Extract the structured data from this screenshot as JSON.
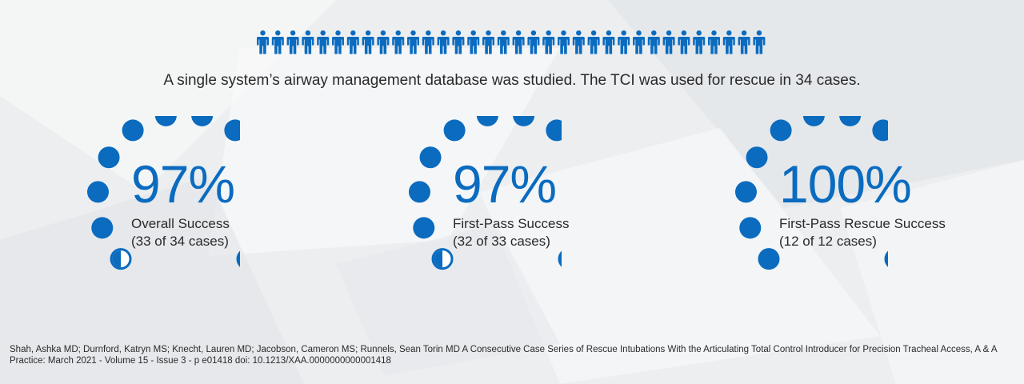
{
  "intro_text": "A single system’s airway management database was studied. The TCI was used for rescue in 34 cases.",
  "people_icons": {
    "count": 34,
    "icon": "person-icon",
    "color": "#0a6bbf"
  },
  "stats": [
    {
      "percent": "97%",
      "label": "Overall Success",
      "detail": "(33 of 34 cases)",
      "dots_filled": 11,
      "half_dot": true
    },
    {
      "percent": "97%",
      "label": "First-Pass Success",
      "detail": "(32 of 33 cases)",
      "dots_filled": 11,
      "half_dot": true
    },
    {
      "percent": "100%",
      "label": "First-Pass Rescue Success",
      "detail": "(12 of 12 cases)",
      "dots_filled": 12,
      "half_dot": false
    }
  ],
  "citation": "Shah, Ashka MD; Durnford, Katryn MS; Knecht, Lauren MD; Jacobson, Cameron MS; Runnels, Sean Torin MD A Consecutive Case Series of Rescue Intubations With the Articulating Total Control Introducer for Precision Tracheal Access, A & A Practice: March 2021 - Volume 15 - Issue 3 - p e01418 doi: 10.1213/XAA.0000000000001418",
  "colors": {
    "accent": "#0a6bbf",
    "background": "#eeeff1"
  }
}
